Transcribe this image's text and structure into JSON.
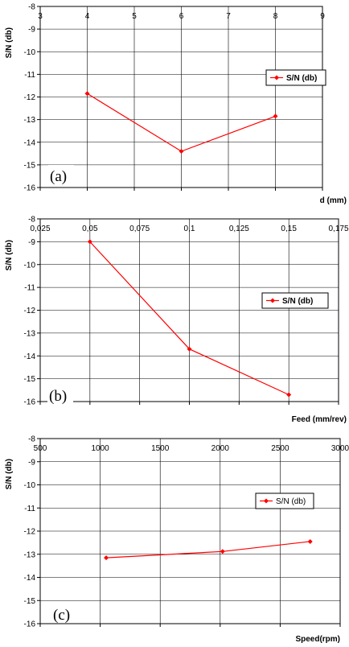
{
  "colors": {
    "series": "#ff0000",
    "grid": "#000000",
    "background": "#ffffff"
  },
  "chart_data": [
    {
      "type": "line",
      "panel_label": "(a)",
      "xlabel": "d (mm)",
      "ylabel": "S/N (db)",
      "xlim": [
        3,
        9
      ],
      "ylim": [
        -16,
        -8
      ],
      "x_ticks": [
        "3",
        "4",
        "5",
        "6",
        "7",
        "8",
        "9"
      ],
      "y_ticks": [
        "-8",
        "-9",
        "-10",
        "-11",
        "-12",
        "-13",
        "-14",
        "-15",
        "-16"
      ],
      "grid": true,
      "legend_position": "right",
      "series": [
        {
          "name": "S/N (db)",
          "x": [
            4,
            6,
            8
          ],
          "y": [
            -11.85,
            -14.4,
            -12.85
          ]
        }
      ]
    },
    {
      "type": "line",
      "panel_label": "(b)",
      "xlabel": "Feed (mm/rev)",
      "ylabel": "S/N (db)",
      "xlim": [
        0.025,
        0.175
      ],
      "ylim": [
        -16,
        -8
      ],
      "x_ticks": [
        "0,025",
        "0,05",
        "0,075",
        "0,1",
        "0,125",
        "0,15",
        "0,175"
      ],
      "y_ticks": [
        "-8",
        "-9",
        "-10",
        "-11",
        "-12",
        "-13",
        "-14",
        "-15",
        "-16"
      ],
      "grid": true,
      "legend_position": "right",
      "series": [
        {
          "name": "S/N (db)",
          "x": [
            0.05,
            0.1,
            0.15
          ],
          "y": [
            -9.0,
            -13.7,
            -15.7
          ]
        }
      ]
    },
    {
      "type": "line",
      "panel_label": "(c)",
      "xlabel": "Speed(rpm)",
      "ylabel": "S/N (db)",
      "xlim": [
        500,
        3000
      ],
      "ylim": [
        -16,
        -8
      ],
      "x_ticks": [
        "500",
        "1000",
        "1500",
        "2000",
        "2500",
        "3000"
      ],
      "y_ticks": [
        "-8",
        "-9",
        "-10",
        "-11",
        "-12",
        "-13",
        "-14",
        "-15",
        "-16"
      ],
      "grid": true,
      "legend_position": "right",
      "series": [
        {
          "name": "S/N (db)",
          "x": [
            1050,
            2020,
            2750
          ],
          "y": [
            -13.15,
            -12.88,
            -12.45
          ]
        }
      ]
    }
  ]
}
